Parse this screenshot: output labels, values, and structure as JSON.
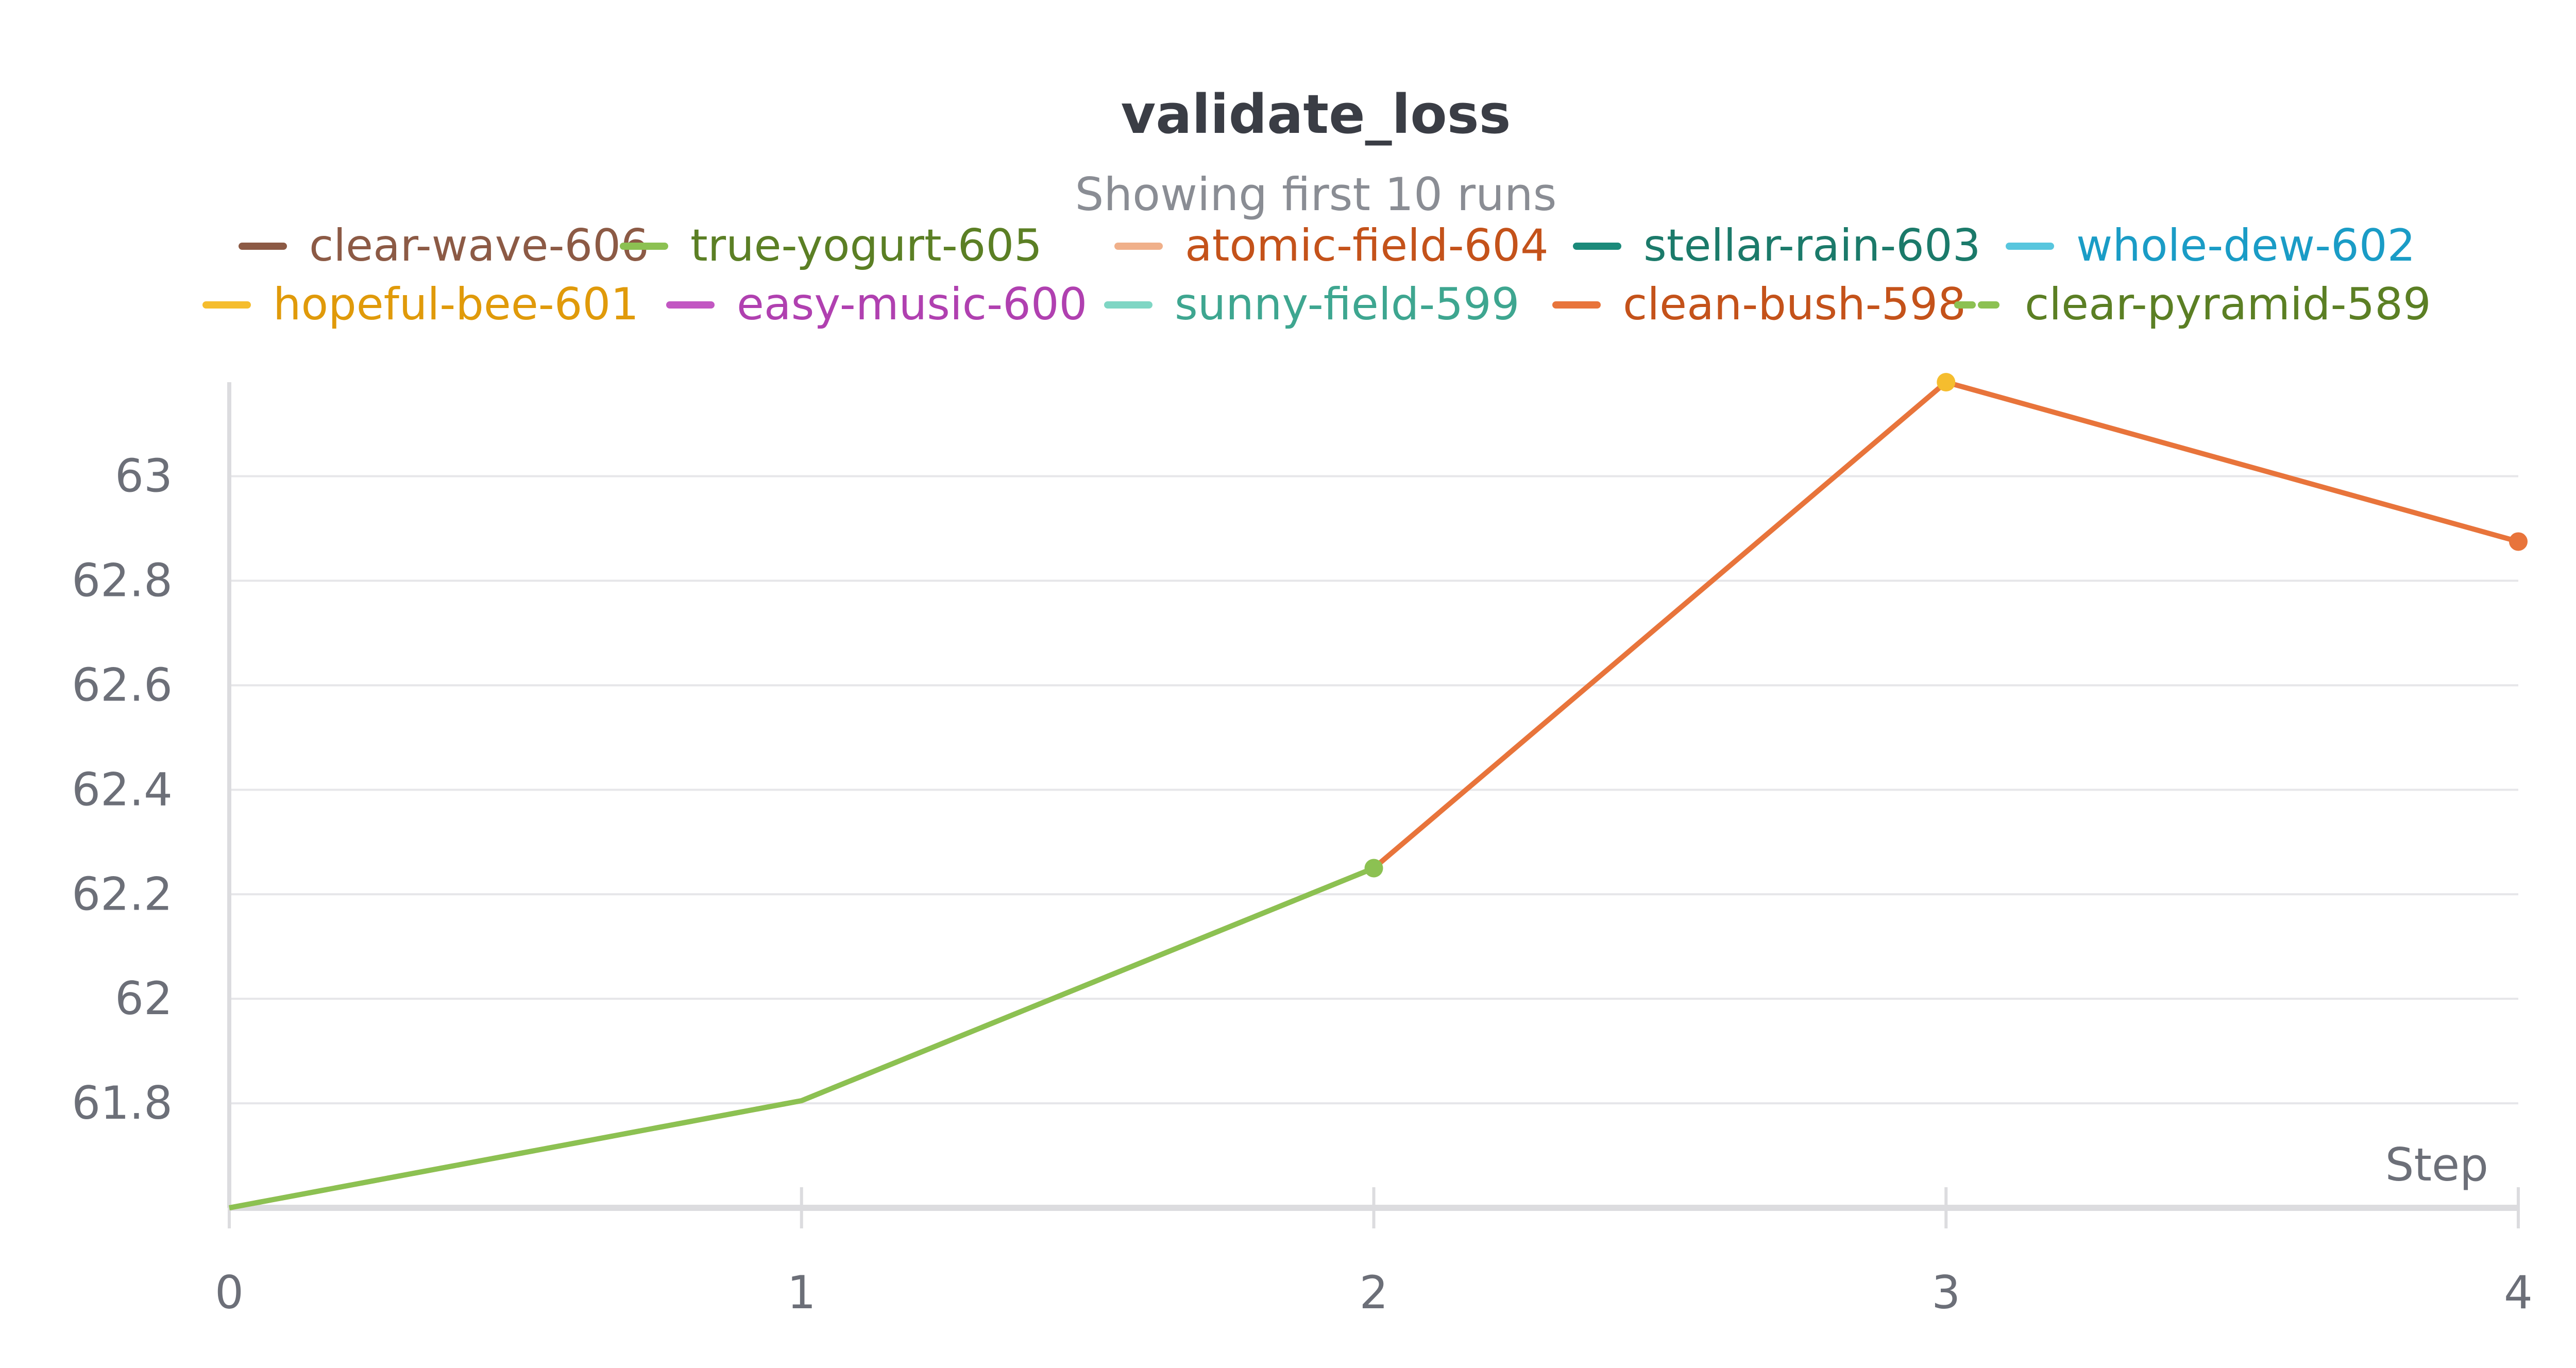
{
  "chart_data": {
    "type": "line",
    "title": "validate_loss",
    "subtitle": "Showing first 10 runs",
    "xlabel": "Step",
    "ylabel": "",
    "x": [
      0,
      1,
      2,
      3,
      4
    ],
    "xticks": [
      "0",
      "1",
      "2",
      "3",
      "4"
    ],
    "yticks": [
      "61.8",
      "62",
      "62.2",
      "62.4",
      "62.6",
      "62.8",
      "63"
    ],
    "xlim": [
      0,
      4
    ],
    "ylim": [
      61.6,
      63.18
    ],
    "grid": true,
    "legend_position": "top",
    "series": [
      {
        "name": "clear-wave-606",
        "color": "#8c5a45",
        "text_color": "#8c5a45",
        "dash": false,
        "points": []
      },
      {
        "name": "true-yogurt-605",
        "color": "#8cc152",
        "text_color": "#5b7f24",
        "dash": false,
        "points": [
          [
            0,
            61.6
          ],
          [
            1,
            61.805
          ],
          [
            2,
            62.25
          ]
        ]
      },
      {
        "name": "atomic-field-604",
        "color": "#f0b08a",
        "text_color": "#c4521a",
        "dash": false,
        "points": []
      },
      {
        "name": "stellar-rain-603",
        "color": "#1b8a7a",
        "text_color": "#1b7a6a",
        "dash": false,
        "points": []
      },
      {
        "name": "whole-dew-602",
        "color": "#58c6de",
        "text_color": "#1a9cc6",
        "dash": false,
        "points": []
      },
      {
        "name": "hopeful-bee-601",
        "color": "#f5bd2e",
        "text_color": "#e09a0a",
        "dash": false,
        "points": [
          [
            3,
            63.18
          ]
        ]
      },
      {
        "name": "easy-music-600",
        "color": "#c257c2",
        "text_color": "#b040b0",
        "dash": false,
        "points": []
      },
      {
        "name": "sunny-field-599",
        "color": "#7fd6c4",
        "text_color": "#3ea690",
        "dash": false,
        "points": []
      },
      {
        "name": "clean-bush-598",
        "color": "#e8743b",
        "text_color": "#c4521a",
        "dash": false,
        "points": [
          [
            0,
            61.6
          ],
          [
            1,
            61.805
          ],
          [
            2,
            62.25
          ],
          [
            3,
            63.18
          ],
          [
            4,
            62.875
          ]
        ]
      },
      {
        "name": "clear-pyramid-589",
        "color": "#8cc152",
        "text_color": "#5b7f24",
        "dash": true,
        "points": [
          [
            0,
            61.6
          ],
          [
            1,
            61.805
          ],
          [
            2,
            62.25
          ]
        ]
      }
    ]
  }
}
